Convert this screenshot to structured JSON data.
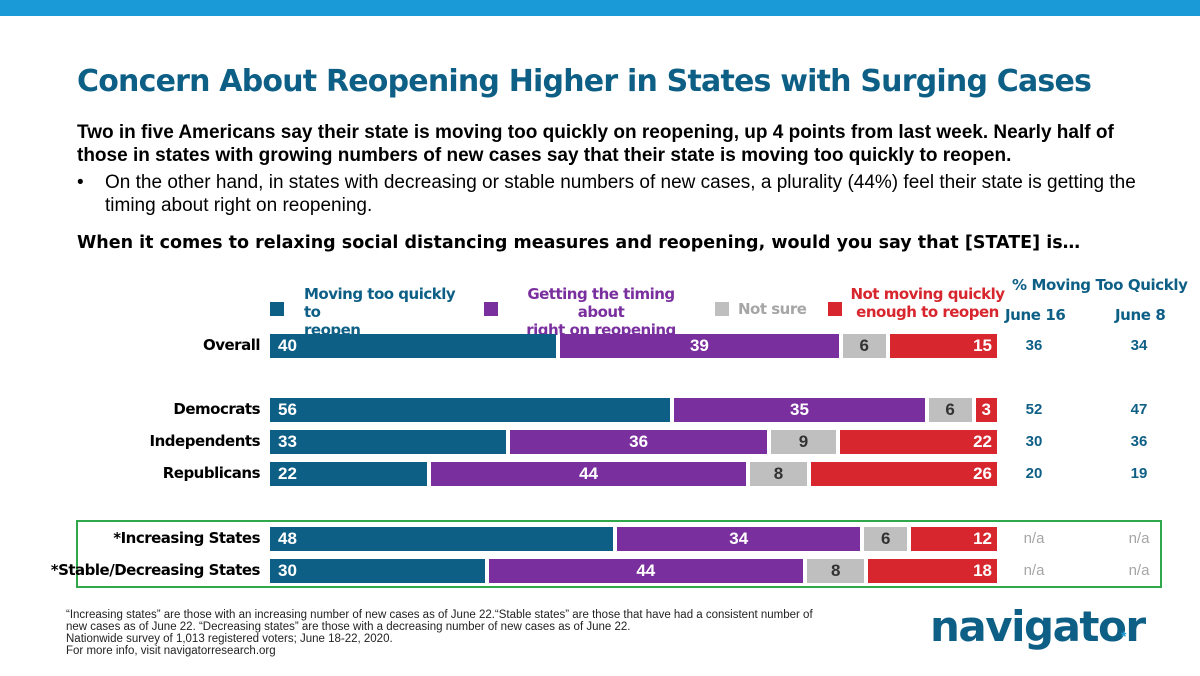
{
  "title": "Concern About Reopening Higher in States with Surging Cases",
  "intro": "Two in five Americans say their state is moving too quickly on reopening, up 4 points from last week. Nearly half of those in states with growing numbers of new cases say that their state is moving too quickly to reopen.",
  "bullet_symbol": "•",
  "bullet": "On the other hand, in states with decreasing or stable numbers of new cases, a plurality (44%) feel their state is getting the timing about right on reopening.",
  "question": "When it comes to relaxing social distancing measures and reopening, would you say that [STATE] is…",
  "trend_header": {
    "title": "% Moving Too Quickly",
    "col1": "June 16",
    "col2": "June 8"
  },
  "colors": {
    "title": "#0e5f86",
    "topbar": "#1a9bd7",
    "highlight_border": "#2ea84a",
    "na": "#a6a6a6"
  },
  "chart_data": {
    "type": "bar",
    "orientation": "horizontal",
    "stacked": true,
    "xlim": [
      0,
      100
    ],
    "legend_placement": "top",
    "grid": false,
    "series": [
      {
        "name": "Moving too quickly to reopen",
        "color": "#0e5f86",
        "text_color": "#0e5f86"
      },
      {
        "name": "Getting the timing about right on reopening",
        "color": "#7a2f9e",
        "text_color": "#7a2f9e"
      },
      {
        "name": "Not sure",
        "color": "#bfbfbf",
        "text_color": "#a6a6a6"
      },
      {
        "name": "Not moving quickly enough to reopen",
        "color": "#d7262d",
        "text_color": "#d7262d"
      }
    ],
    "categories": [
      {
        "label": "Overall",
        "values": [
          40,
          39,
          6,
          15
        ],
        "june16": "36",
        "june8": "34",
        "highlight": false
      },
      {
        "label": "Democrats",
        "values": [
          56,
          35,
          6,
          3
        ],
        "june16": "52",
        "june8": "47",
        "highlight": false
      },
      {
        "label": "Independents",
        "values": [
          33,
          36,
          9,
          22
        ],
        "june16": "30",
        "june8": "36",
        "highlight": false
      },
      {
        "label": "Republicans",
        "values": [
          22,
          44,
          8,
          26
        ],
        "june16": "20",
        "june8": "19",
        "highlight": false
      },
      {
        "label": "*Increasing States",
        "values": [
          48,
          34,
          6,
          12
        ],
        "june16": "n/a",
        "june8": "n/a",
        "highlight": true
      },
      {
        "label": "*Stable/Decreasing States",
        "values": [
          30,
          44,
          8,
          18
        ],
        "june16": "n/a",
        "june8": "n/a",
        "highlight": true
      }
    ]
  },
  "footnotes": [
    "“Increasing states” are those with an increasing number of new cases as of June 22.“Stable states” are those that have had a consistent number of new cases as of June 22. “Decreasing states” are those with a decreasing number of new cases as of June 22.",
    "Nationwide survey of 1,013 registered voters; June 18-22, 2020.",
    "For more info, visit navigatorresearch.org"
  ],
  "logo": {
    "text": "navigator",
    "mark": "*"
  }
}
